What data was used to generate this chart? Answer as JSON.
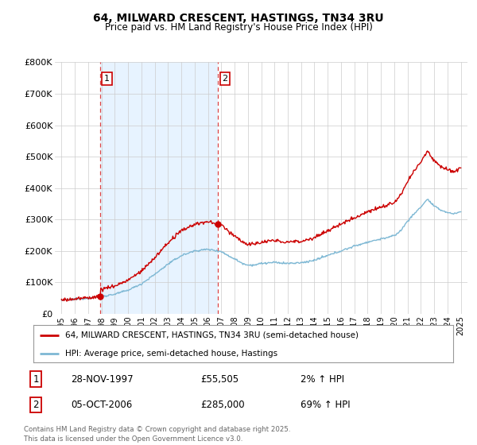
{
  "title": "64, MILWARD CRESCENT, HASTINGS, TN34 3RU",
  "subtitle": "Price paid vs. HM Land Registry's House Price Index (HPI)",
  "legend_line1": "64, MILWARD CRESCENT, HASTINGS, TN34 3RU (semi-detached house)",
  "legend_line2": "HPI: Average price, semi-detached house, Hastings",
  "footer": "Contains HM Land Registry data © Crown copyright and database right 2025.\nThis data is licensed under the Open Government Licence v3.0.",
  "sale1_date": "28-NOV-1997",
  "sale1_price": "£55,505",
  "sale1_hpi": "2% ↑ HPI",
  "sale2_date": "05-OCT-2006",
  "sale2_price": "£285,000",
  "sale2_hpi": "69% ↑ HPI",
  "property_color": "#cc0000",
  "hpi_color": "#7eb8d4",
  "dashed_line_color": "#dd4444",
  "shade_color": "#ddeeff",
  "sale1_year": 1997.91,
  "sale1_value": 55505,
  "sale2_year": 2006.76,
  "sale2_value": 285000,
  "ylim": [
    0,
    800000
  ],
  "ytick_labels": [
    "£0",
    "£100K",
    "£200K",
    "£300K",
    "£400K",
    "£500K",
    "£600K",
    "£700K",
    "£800K"
  ],
  "background_color": "#ffffff",
  "grid_color": "#cccccc"
}
